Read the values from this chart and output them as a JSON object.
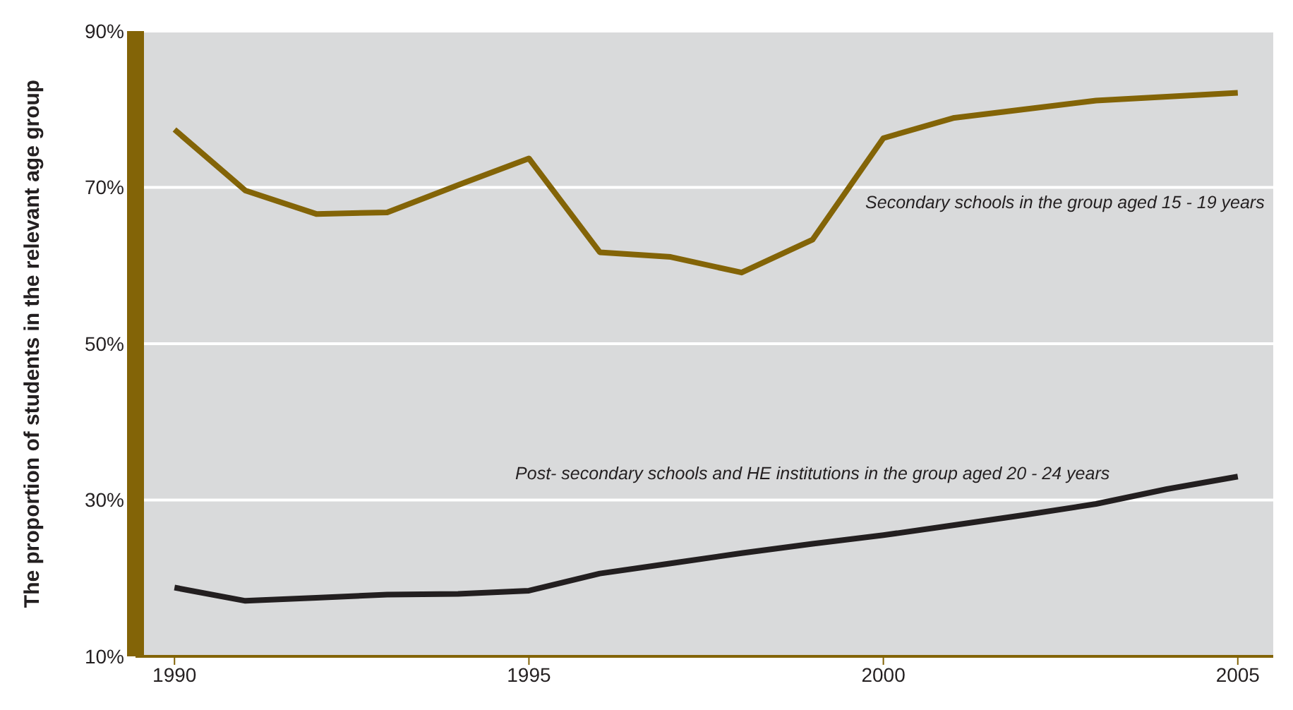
{
  "chart_data": {
    "type": "line",
    "ylabel": "The proportion of students in the relevant age group",
    "x": [
      1990,
      1991,
      1992,
      1993,
      1994,
      1995,
      1996,
      1997,
      1998,
      1999,
      2000,
      2001,
      2002,
      2003,
      2004,
      2005
    ],
    "series": [
      {
        "name": "Secondary schools in the group aged 15 - 19 years",
        "color": "#836407",
        "values": [
          77.4,
          69.6,
          66.6,
          66.8,
          70.3,
          73.7,
          61.7,
          61.1,
          59.1,
          63.3,
          76.3,
          78.9,
          80.0,
          81.1,
          81.6,
          82.1
        ]
      },
      {
        "name": "Post- secondary schools and HE institutions in the group aged 20 - 24 years",
        "color": "#231f20",
        "values": [
          18.8,
          17.1,
          17.5,
          17.9,
          18.0,
          18.4,
          20.6,
          21.9,
          23.2,
          24.4,
          25.5,
          26.8,
          28.1,
          29.5,
          31.4,
          33.0
        ]
      }
    ],
    "xlim": [
      1989.45,
      2005.5
    ],
    "xticks": [
      1990,
      1995,
      2000,
      2005
    ],
    "ylim": [
      10,
      90
    ],
    "yticks": [
      {
        "value": 10,
        "label": "10%"
      },
      {
        "value": 30,
        "label": "30%"
      },
      {
        "value": 50,
        "label": "50%"
      },
      {
        "value": 70,
        "label": "70%"
      },
      {
        "value": 90,
        "label": "90%"
      }
    ],
    "grid": "y",
    "marker": "none",
    "line_style": "solid"
  }
}
